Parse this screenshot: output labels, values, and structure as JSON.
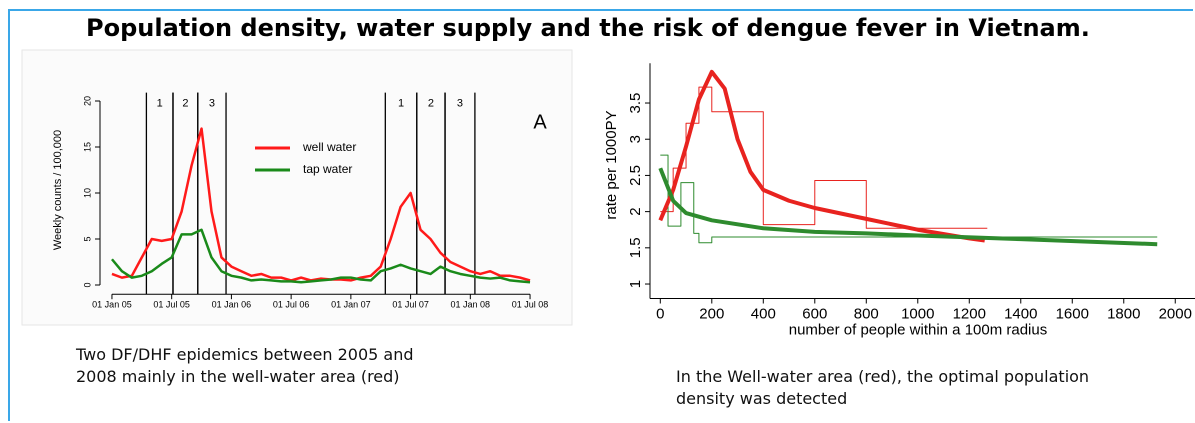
{
  "title": "Population density, water supply and the risk of dengue fever in Vietnam.",
  "chart_data": [
    {
      "type": "line",
      "ylabel": "Weekly counts / 100,000",
      "annotation": "A",
      "caption": "Two DF/DHF epidemics between 2005 and  2008 mainly in the well-water area (red)",
      "x": [
        "2005-01-01",
        "2005-02-01",
        "2005-03-01",
        "2005-04-01",
        "2005-05-01",
        "2005-06-01",
        "2005-07-01",
        "2005-08-01",
        "2005-09-01",
        "2005-10-01",
        "2005-11-01",
        "2005-12-01",
        "2006-01-01",
        "2006-02-01",
        "2006-03-01",
        "2006-04-01",
        "2006-05-01",
        "2006-06-01",
        "2006-07-01",
        "2006-08-01",
        "2006-09-01",
        "2006-10-01",
        "2006-11-01",
        "2006-12-01",
        "2007-01-01",
        "2007-02-01",
        "2007-03-01",
        "2007-04-01",
        "2007-05-01",
        "2007-06-01",
        "2007-07-01",
        "2007-08-01",
        "2007-09-01",
        "2007-10-01",
        "2007-11-01",
        "2007-12-01",
        "2008-01-01",
        "2008-02-01",
        "2008-03-01",
        "2008-04-01",
        "2008-05-01",
        "2008-06-01",
        "2008-07-01"
      ],
      "series": [
        {
          "name": "well water",
          "color": "#ff1a1a",
          "values": [
            1.2,
            0.8,
            1.0,
            3,
            5,
            4.8,
            5,
            8,
            13,
            17,
            8,
            3,
            2,
            1.5,
            1,
            1.2,
            0.8,
            0.8,
            0.5,
            0.8,
            0.5,
            0.7,
            0.6,
            0.6,
            0.5,
            0.8,
            1,
            2,
            5,
            8.5,
            10,
            6,
            5,
            3.5,
            2.5,
            2,
            1.5,
            1.2,
            1.5,
            1,
            1,
            0.8,
            0.5
          ]
        },
        {
          "name": "tap water",
          "color": "#1a8a1a",
          "values": [
            2.8,
            1.5,
            0.8,
            1,
            1.5,
            2.3,
            3,
            5.5,
            5.5,
            6,
            3,
            1.5,
            1,
            0.8,
            0.5,
            0.6,
            0.5,
            0.4,
            0.4,
            0.3,
            0.4,
            0.5,
            0.6,
            0.8,
            0.8,
            0.6,
            0.5,
            1.5,
            1.8,
            2.2,
            1.8,
            1.5,
            1.2,
            2,
            1.5,
            1.2,
            1,
            0.8,
            0.7,
            0.8,
            0.5,
            0.4,
            0.3
          ]
        }
      ],
      "periods": [
        {
          "label": "1",
          "start": "2005-04-15",
          "end": "2005-07-05"
        },
        {
          "label": "2",
          "start": "2005-07-05",
          "end": "2005-09-20"
        },
        {
          "label": "3",
          "start": "2005-09-20",
          "end": "2005-12-15"
        },
        {
          "label": "1",
          "start": "2007-04-15",
          "end": "2007-07-20"
        },
        {
          "label": "2",
          "start": "2007-07-20",
          "end": "2007-10-15"
        },
        {
          "label": "3",
          "start": "2007-10-15",
          "end": "2008-01-15"
        }
      ],
      "xlim": [
        "2004-12-01",
        "2008-08-01"
      ],
      "xticks": [
        {
          "value": "2005-01-01",
          "label": "01 Jan 05"
        },
        {
          "value": "2005-07-01",
          "label": "01 Jul 05"
        },
        {
          "value": "2006-01-01",
          "label": "01 Jan 06"
        },
        {
          "value": "2006-07-01",
          "label": "01 Jul 06"
        },
        {
          "value": "2007-01-01",
          "label": "01 Jan 07"
        },
        {
          "value": "2007-07-01",
          "label": "01 Jul 07"
        },
        {
          "value": "2008-01-01",
          "label": "01 Jan 08"
        },
        {
          "value": "2008-07-01",
          "label": "01 Jul 08"
        }
      ],
      "ylim": [
        -1,
        22
      ],
      "yticks": [
        0,
        5,
        10,
        15,
        20
      ],
      "legend": "top-center"
    },
    {
      "type": "line",
      "xlabel": "number of people within a 100m radius",
      "ylabel": "rate per 1000PY",
      "caption": "In the Well-water area (red), the optimal population density was detected",
      "series": [
        {
          "color": "#e8231f",
          "step": true,
          "x": [
            0,
            50,
            100,
            150,
            200,
            400,
            600,
            800,
            1270
          ],
          "values": [
            2.0,
            2.6,
            3.22,
            3.72,
            3.38,
            1.82,
            2.43,
            1.77,
            1.77
          ]
        },
        {
          "color": "#2e8b2e",
          "step": true,
          "x": [
            0,
            30,
            80,
            130,
            150,
            200,
            400,
            1930
          ],
          "values": [
            2.78,
            1.8,
            2.4,
            1.7,
            1.57,
            1.65,
            1.65,
            1.65
          ]
        },
        {
          "color": "#e8231f",
          "step": false,
          "x": [
            0,
            50,
            100,
            150,
            200,
            250,
            300,
            350,
            400,
            500,
            600,
            800,
            1000,
            1200,
            1260
          ],
          "values": [
            1.88,
            2.3,
            2.9,
            3.55,
            3.93,
            3.7,
            3.0,
            2.55,
            2.3,
            2.15,
            2.05,
            1.9,
            1.75,
            1.63,
            1.6
          ]
        },
        {
          "color": "#2e8b2e",
          "step": false,
          "x": [
            0,
            50,
            100,
            200,
            400,
            600,
            800,
            1000,
            1400,
            1930
          ],
          "values": [
            2.6,
            2.15,
            1.98,
            1.88,
            1.77,
            1.72,
            1.7,
            1.67,
            1.62,
            1.55
          ]
        }
      ],
      "xlim": [
        -40,
        2100
      ],
      "xticks": [
        0,
        200,
        400,
        600,
        800,
        1000,
        1200,
        1400,
        1600,
        1800,
        2000
      ],
      "ylim": [
        0.8,
        4.05
      ],
      "yticks": [
        1,
        1.5,
        2,
        2.5,
        3,
        3.5
      ]
    }
  ]
}
